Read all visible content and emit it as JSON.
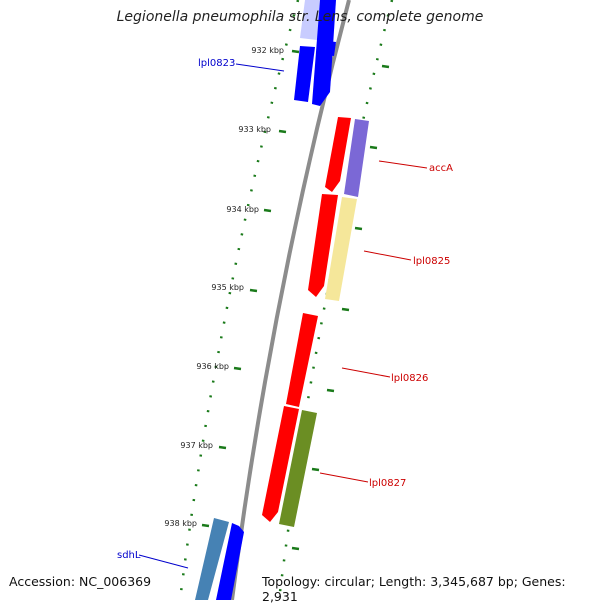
{
  "title": "Legionella pneumophila str. Lens, complete genome",
  "footer": {
    "accession": "Accession: NC_006369",
    "stats": "Topology: circular; Length: 3,345,687 bp; Genes: 2,931"
  },
  "ticks": [
    "932 kbp",
    "933 kbp",
    "934 kbp",
    "935 kbp",
    "936 kbp",
    "937 kbp",
    "938 kbp"
  ],
  "gene_labels": [
    "lpl0823",
    "accA",
    "lpl0825",
    "lpl0826",
    "lpl0827",
    "sdhL"
  ],
  "colors": {
    "backbone": "#888888",
    "tick": "#1a7a1a",
    "forward_gene": "#0000ff",
    "reverse_gene": "#ff0000",
    "forward_label": "#0000cc",
    "reverse_label": "#cc0000",
    "cog_purple": "#7b68d6",
    "cog_yellow": "#f5e79a",
    "cog_green": "#6b8e23",
    "cog_steel": "#4682b4"
  }
}
